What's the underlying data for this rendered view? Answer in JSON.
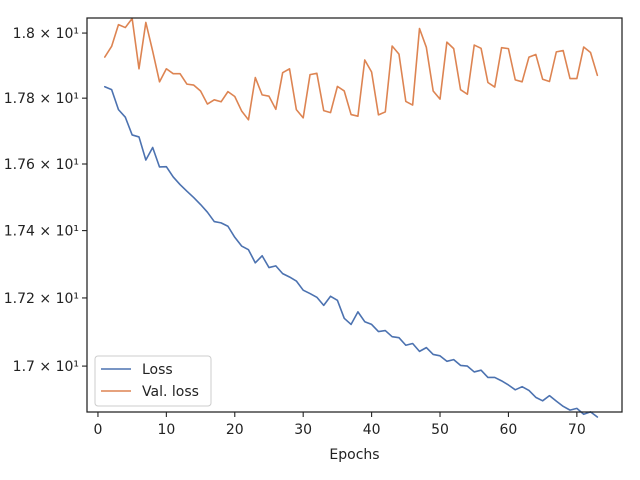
{
  "chart_data": {
    "type": "line",
    "title": "",
    "xlabel": "Epochs",
    "ylabel": "",
    "xlim": [
      -1.6,
      76.6
    ],
    "ylim": [
      16.8666,
      18.0466
    ],
    "xticks": [
      0,
      10,
      20,
      30,
      40,
      50,
      60,
      70
    ],
    "xtick_labels": [
      "0",
      "10",
      "20",
      "30",
      "40",
      "50",
      "60",
      "70"
    ],
    "yticks": [
      17.0,
      17.2,
      17.4,
      17.6,
      17.8,
      18.0
    ],
    "ytick_labels": [
      "1.7 × 10¹",
      "1.72 × 10¹",
      "1.74 × 10¹",
      "1.76 × 10¹",
      "1.78 × 10¹",
      "1.8 × 10¹"
    ],
    "y_scale": "log",
    "grid": false,
    "legend_position": "lower-left",
    "x": [
      1,
      2,
      3,
      4,
      5,
      6,
      7,
      8,
      9,
      10,
      11,
      12,
      13,
      14,
      15,
      16,
      17,
      18,
      19,
      20,
      21,
      22,
      23,
      24,
      25,
      26,
      27,
      28,
      29,
      30,
      31,
      32,
      33,
      34,
      35,
      36,
      37,
      38,
      39,
      40,
      41,
      42,
      43,
      44,
      45,
      46,
      47,
      48,
      49,
      50,
      51,
      52,
      53,
      54,
      55,
      56,
      57,
      58,
      59,
      60,
      61,
      62,
      63,
      64,
      65,
      66,
      67,
      68,
      69,
      70,
      71,
      72,
      73
    ],
    "series": [
      {
        "name": "Loss",
        "color": "#4c72b0",
        "values": [
          17.835,
          17.826,
          17.765,
          17.742,
          17.688,
          17.682,
          17.612,
          17.65,
          17.591,
          17.592,
          17.561,
          17.538,
          17.518,
          17.499,
          17.478,
          17.455,
          17.427,
          17.423,
          17.413,
          17.38,
          17.354,
          17.343,
          17.304,
          17.325,
          17.29,
          17.295,
          17.272,
          17.262,
          17.25,
          17.223,
          17.213,
          17.202,
          17.178,
          17.205,
          17.193,
          17.14,
          17.122,
          17.159,
          17.13,
          17.122,
          17.101,
          17.104,
          17.086,
          17.083,
          17.061,
          17.066,
          17.043,
          17.054,
          17.034,
          17.03,
          17.014,
          17.019,
          17.002,
          17.0,
          16.983,
          16.988,
          16.967,
          16.967,
          16.957,
          16.945,
          16.931,
          16.94,
          16.929,
          16.909,
          16.899,
          16.914,
          16.898,
          16.883,
          16.872,
          16.877,
          16.86,
          16.867,
          16.852
        ]
      },
      {
        "name": "Val. loss",
        "color": "#dd8452",
        "values": [
          17.926,
          17.959,
          18.026,
          18.017,
          18.045,
          17.89,
          18.033,
          17.944,
          17.85,
          17.89,
          17.875,
          17.875,
          17.843,
          17.84,
          17.822,
          17.782,
          17.795,
          17.789,
          17.82,
          17.805,
          17.761,
          17.734,
          17.863,
          17.81,
          17.806,
          17.766,
          17.878,
          17.89,
          17.765,
          17.74,
          17.872,
          17.876,
          17.762,
          17.756,
          17.836,
          17.822,
          17.75,
          17.745,
          17.917,
          17.88,
          17.749,
          17.758,
          17.96,
          17.935,
          17.79,
          17.779,
          18.014,
          17.956,
          17.822,
          17.797,
          17.972,
          17.952,
          17.826,
          17.812,
          17.963,
          17.953,
          17.848,
          17.834,
          17.955,
          17.952,
          17.856,
          17.85,
          17.926,
          17.934,
          17.858,
          17.851,
          17.942,
          17.946,
          17.86,
          17.86,
          17.957,
          17.94,
          17.87
        ]
      }
    ]
  }
}
